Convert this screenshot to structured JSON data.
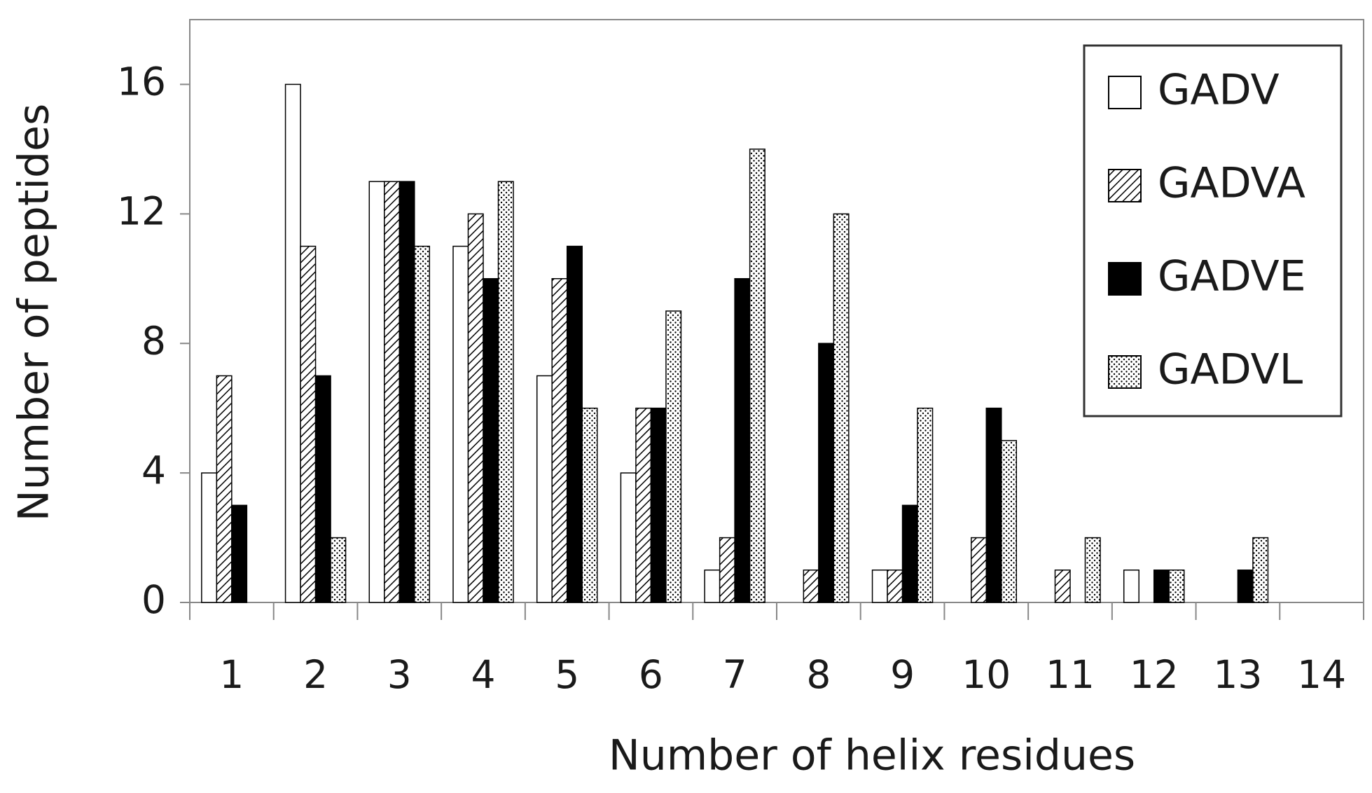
{
  "chart_data": {
    "type": "bar",
    "x_label": "Number of helix residues",
    "y_label": "Number of peptides",
    "categories": [
      "1",
      "2",
      "3",
      "4",
      "5",
      "6",
      "7",
      "8",
      "9",
      "10",
      "11",
      "12",
      "13",
      "14"
    ],
    "series": [
      {
        "name": "GADV",
        "color": "#ffffff",
        "pattern": "none",
        "values": [
          4,
          16,
          13,
          11,
          7,
          4,
          1,
          0,
          1,
          0,
          0,
          1,
          0,
          0
        ]
      },
      {
        "name": "GADVA",
        "color": "#ffffff",
        "pattern": "hatch",
        "values": [
          7,
          11,
          13,
          12,
          10,
          6,
          2,
          1,
          1,
          2,
          1,
          0,
          0,
          0
        ]
      },
      {
        "name": "GADVE",
        "color": "#000000",
        "pattern": "none",
        "values": [
          3,
          7,
          13,
          10,
          11,
          6,
          10,
          8,
          3,
          6,
          0,
          1,
          1,
          0
        ]
      },
      {
        "name": "GADVL",
        "color": "#ffffff",
        "pattern": "dots",
        "values": [
          0,
          2,
          11,
          13,
          6,
          9,
          14,
          12,
          6,
          5,
          2,
          1,
          2,
          0
        ]
      }
    ],
    "ylim": [
      0,
      18
    ],
    "yticks": [
      0,
      4,
      8,
      12,
      16
    ],
    "grid": false,
    "legend": "upper right"
  }
}
